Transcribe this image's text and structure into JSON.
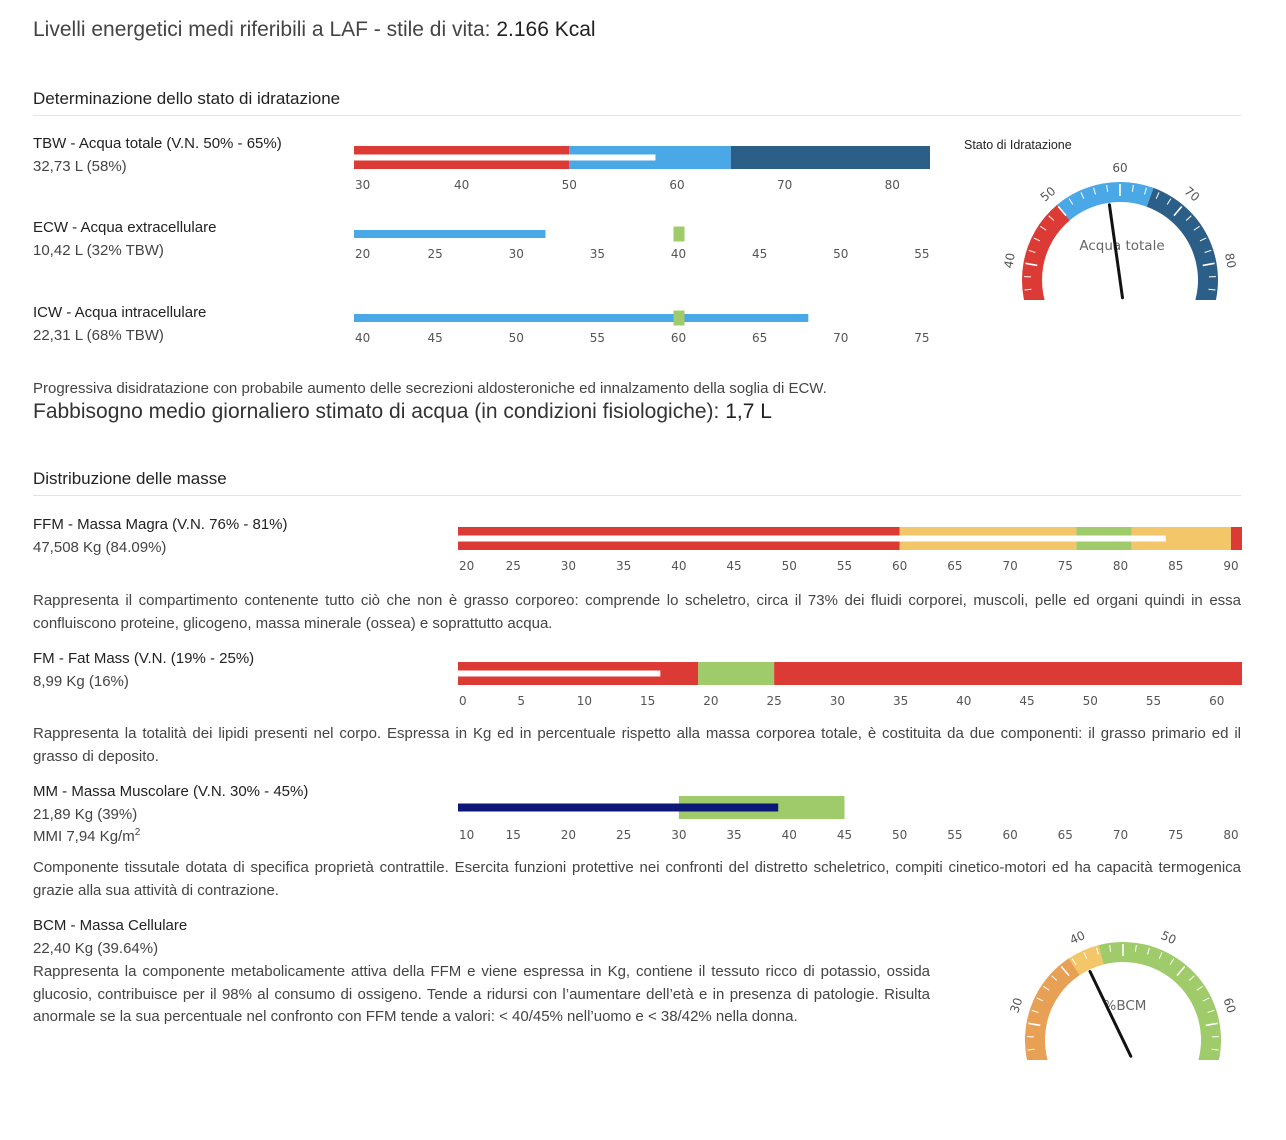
{
  "header": {
    "prefix": "Livelli energetici medi riferibili a LAF - stile di vita: ",
    "value": "2.166 Kcal"
  },
  "hydration": {
    "title": "Determinazione dello stato di idratazione",
    "tbw": {
      "label": "TBW - Acqua totale (V.N. 50% - 65%)",
      "value": "32,73 L (58%)"
    },
    "ecw": {
      "label": "ECW - Acqua extracellulare",
      "value": "10,42 L (32% TBW)"
    },
    "icw": {
      "label": "ICW - Acqua intracellulare",
      "value": "22,31 L (68% TBW)"
    },
    "note": "Progressiva disidratazione con probabile aumento delle secrezioni aldosteroniche ed innalzamento della soglia di ECW.",
    "water_need_label": "Fabbisogno medio giornaliero stimato di acqua (in condizioni fisiologiche): ",
    "water_need_value": "1,7 L",
    "gauge_title": "Stato di Idratazione"
  },
  "masses": {
    "title": "Distribuzione delle masse",
    "ffm": {
      "label": "FFM - Massa Magra (V.N. 76% - 81%)",
      "value": "47,508 Kg (84.09%)",
      "desc": "Rappresenta il compartimento contenente tutto ciò che non è grasso corporeo: comprende lo scheletro, circa il 73% dei fluidi corporei, muscoli, pelle ed organi quindi in essa confluiscono proteine, glicogeno, massa minerale (ossea) e soprattutto acqua."
    },
    "fm": {
      "label": "FM - Fat Mass (V.N. (19% - 25%)",
      "value": "8,99 Kg (16%)",
      "desc": "Rappresenta la totalità dei lipidi presenti nel corpo. Espressa in Kg ed in percentuale rispetto alla massa corporea totale, è costituita da due componenti: il grasso primario ed il grasso di deposito."
    },
    "mm": {
      "label": "MM - Massa Muscolare (V.N. 30% - 45%)",
      "value": "21,89 Kg (39%)",
      "mmi_prefix": "MMI 7,94 Kg/m",
      "mmi_sup": "2",
      "desc": "Componente tissutale dotata di specifica proprietà contrattile. Esercita funzioni protettive nei confronti del distretto scheletrico, compiti cinetico-motori ed ha capacità termogenica grazie alla sua attività di contrazione."
    },
    "bcm": {
      "label": "BCM - Massa Cellulare",
      "value": "22,40 Kg (39.64%)",
      "desc": "Rappresenta la componente metabolicamente attiva della FFM e viene espressa in Kg, contiene il tessuto ricco di potassio, ossida glucosio, contribuisce per il 98% al consumo di ossigeno. Tende a ridursi con l’aumentare dell’età e in presenza di patologie. Risulta anormale se la sua percentuale nel confronto con FFM tende a valori: < 40/45% nell’uomo e < 38/42% nella donna."
    }
  },
  "chart_data": [
    {
      "id": "tbw",
      "type": "bullet",
      "axis_min": 30,
      "axis_max": 83.5,
      "ticks": [
        30,
        40,
        50,
        60,
        70,
        80
      ],
      "bands": [
        {
          "from": 30,
          "to": 50,
          "color": "#dc3a35"
        },
        {
          "from": 50,
          "to": 65,
          "color": "#4aa8e6"
        },
        {
          "from": 65,
          "to": 83.5,
          "color": "#2c5f87"
        }
      ],
      "value": 58,
      "value_color": "#ffffff"
    },
    {
      "id": "ecw",
      "type": "bullet",
      "axis_min": 20,
      "axis_max": 55.5,
      "ticks": [
        20,
        25,
        30,
        35,
        40,
        45,
        50,
        55
      ],
      "bands": [],
      "value": 31.8,
      "value_color": "#4aa8e6",
      "target": 40,
      "target_color": "#9fcb6b"
    },
    {
      "id": "icw",
      "type": "bullet",
      "axis_min": 40,
      "axis_max": 75.5,
      "ticks": [
        40,
        45,
        50,
        55,
        60,
        65,
        70,
        75
      ],
      "bands": [],
      "value": 68,
      "value_color": "#4aa8e6",
      "target": 60,
      "target_color": "#9fcb6b"
    },
    {
      "id": "ffm",
      "type": "bullet",
      "axis_min": 20,
      "axis_max": 91,
      "ticks": [
        20,
        25,
        30,
        35,
        40,
        45,
        50,
        55,
        60,
        65,
        70,
        75,
        80,
        85,
        90
      ],
      "bands": [
        {
          "from": 20,
          "to": 60,
          "color": "#dc3a35"
        },
        {
          "from": 60,
          "to": 76,
          "color": "#f3c66a"
        },
        {
          "from": 76,
          "to": 81,
          "color": "#9fcb6b"
        },
        {
          "from": 81,
          "to": 90,
          "color": "#f3c66a"
        },
        {
          "from": 90,
          "to": 91,
          "color": "#dc3a35"
        }
      ],
      "value": 84.09,
      "value_color": "#ffffff"
    },
    {
      "id": "fm",
      "type": "bullet",
      "axis_min": 0,
      "axis_max": 62,
      "ticks": [
        0,
        5,
        10,
        15,
        20,
        25,
        30,
        35,
        40,
        45,
        50,
        55,
        60
      ],
      "bands": [
        {
          "from": 0,
          "to": 19,
          "color": "#dc3a35"
        },
        {
          "from": 19,
          "to": 25,
          "color": "#9fcb6b"
        },
        {
          "from": 25,
          "to": 62,
          "color": "#dc3a35"
        }
      ],
      "value": 16,
      "value_color": "#ffffff"
    },
    {
      "id": "mm",
      "type": "bullet",
      "axis_min": 10,
      "axis_max": 81,
      "ticks": [
        10,
        15,
        20,
        25,
        30,
        35,
        40,
        45,
        50,
        55,
        60,
        65,
        70,
        75,
        80
      ],
      "bands": [
        {
          "from": 30,
          "to": 45,
          "color": "#9fcb6b"
        }
      ],
      "value": 39,
      "value_color": "#0c1777"
    },
    {
      "id": "gauge-hydration",
      "type": "gauge",
      "title": "Acqua totale",
      "min": 30,
      "max": 90,
      "ticks": [
        30,
        40,
        50,
        60,
        70,
        80,
        90
      ],
      "value": 58,
      "bands": [
        {
          "from": 30,
          "to": 50,
          "color": "#dc3a35"
        },
        {
          "from": 50,
          "to": 65,
          "color": "#4aa8e6"
        },
        {
          "from": 65,
          "to": 90,
          "color": "#2c5f87"
        }
      ]
    },
    {
      "id": "gauge-bcm",
      "type": "gauge",
      "title": "%BCM",
      "min": 20,
      "max": 70,
      "ticks": [
        20,
        30,
        40,
        50,
        60,
        70
      ],
      "value": 39.64,
      "bands": [
        {
          "from": 20,
          "to": 38,
          "color": "#e8a054"
        },
        {
          "from": 38,
          "to": 42,
          "color": "#f3c66a"
        },
        {
          "from": 42,
          "to": 70,
          "color": "#9fcb6b"
        }
      ]
    }
  ]
}
